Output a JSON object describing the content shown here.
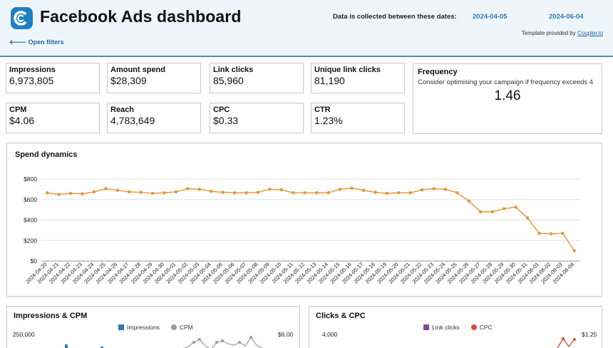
{
  "header": {
    "title": "Facebook Ads dashboard",
    "dates_label": "Data is collected between these dates:",
    "date_start": "2024-04-05",
    "date_end": "2024-06-04",
    "template_prefix": "Template provided by ",
    "template_link": "Coupler.io",
    "open_filters": "🡐 Open filters",
    "logo_icon": "coupler-logo-icon",
    "accent": "#1f7fc4"
  },
  "kpis": [
    {
      "label": "Impressions",
      "value": "6,973,805"
    },
    {
      "label": "Amount spend",
      "value": "$28,309"
    },
    {
      "label": "Link clicks",
      "value": "85,960"
    },
    {
      "label": "Unique link clicks",
      "value": "81,190"
    },
    {
      "label": "CPM",
      "value": "$4.06"
    },
    {
      "label": "Reach",
      "value": "4,783,649"
    },
    {
      "label": "CPC",
      "value": "$0.33"
    },
    {
      "label": "CTR",
      "value": "1.23%"
    }
  ],
  "frequency": {
    "label": "Frequency",
    "note": "Consider optimising your campaign if frequency exceeds 4",
    "value": "1.46"
  },
  "spend": {
    "title": "Spend dynamics",
    "color": "#e39b3e",
    "chart_data": {
      "type": "line",
      "title": "Spend dynamics",
      "ylim": [
        0,
        800
      ],
      "yticks": [
        "$0",
        "$200",
        "$400",
        "$600",
        "$800"
      ],
      "x": [
        "2024-04-20",
        "2024-04-21",
        "2024-04-22",
        "2024-04-23",
        "2024-04-24",
        "2024-04-25",
        "2024-04-26",
        "2024-04-27",
        "2024-04-28",
        "2024-04-29",
        "2024-04-30",
        "2024-05-01",
        "2024-05-02",
        "2024-05-03",
        "2024-05-04",
        "2024-05-05",
        "2024-05-06",
        "2024-05-07",
        "2024-05-08",
        "2024-05-09",
        "2024-05-10",
        "2024-05-11",
        "2024-05-12",
        "2024-05-13",
        "2024-05-14",
        "2024-05-15",
        "2024-05-16",
        "2024-05-17",
        "2024-05-18",
        "2024-05-19",
        "2024-05-20",
        "2024-05-21",
        "2024-05-22",
        "2024-05-23",
        "2024-05-24",
        "2024-05-25",
        "2024-05-26",
        "2024-05-27",
        "2024-05-28",
        "2024-05-29",
        "2024-05-30",
        "2024-05-31",
        "2024-06-01",
        "2024-06-02",
        "2024-06-03",
        "2024-06-04"
      ],
      "values": [
        665,
        650,
        660,
        655,
        675,
        705,
        690,
        675,
        670,
        660,
        665,
        675,
        705,
        700,
        680,
        670,
        665,
        665,
        670,
        700,
        695,
        665,
        665,
        665,
        665,
        700,
        710,
        690,
        670,
        660,
        665,
        665,
        695,
        705,
        700,
        665,
        585,
        480,
        480,
        510,
        525,
        420,
        270,
        265,
        270,
        100
      ],
      "grid": true
    }
  },
  "impressions_cpm": {
    "title": "Impressions & CPM",
    "legend": [
      {
        "label": "Impressions",
        "color": "#2f79b0",
        "shape": "square"
      },
      {
        "label": "CPM",
        "color": "#9a9a9a",
        "shape": "circle"
      }
    ],
    "y_left_top": "250,000",
    "y_right_top": "$6.00"
  },
  "clicks_cpc": {
    "title": "Clicks & CPC",
    "legend": [
      {
        "label": "Link clicks",
        "color": "#8a4a9a",
        "shape": "square"
      },
      {
        "label": "CPC",
        "color": "#d94e3b",
        "shape": "circle"
      }
    ],
    "y_left_top": "4,000",
    "y_right_top": "$1.25"
  }
}
